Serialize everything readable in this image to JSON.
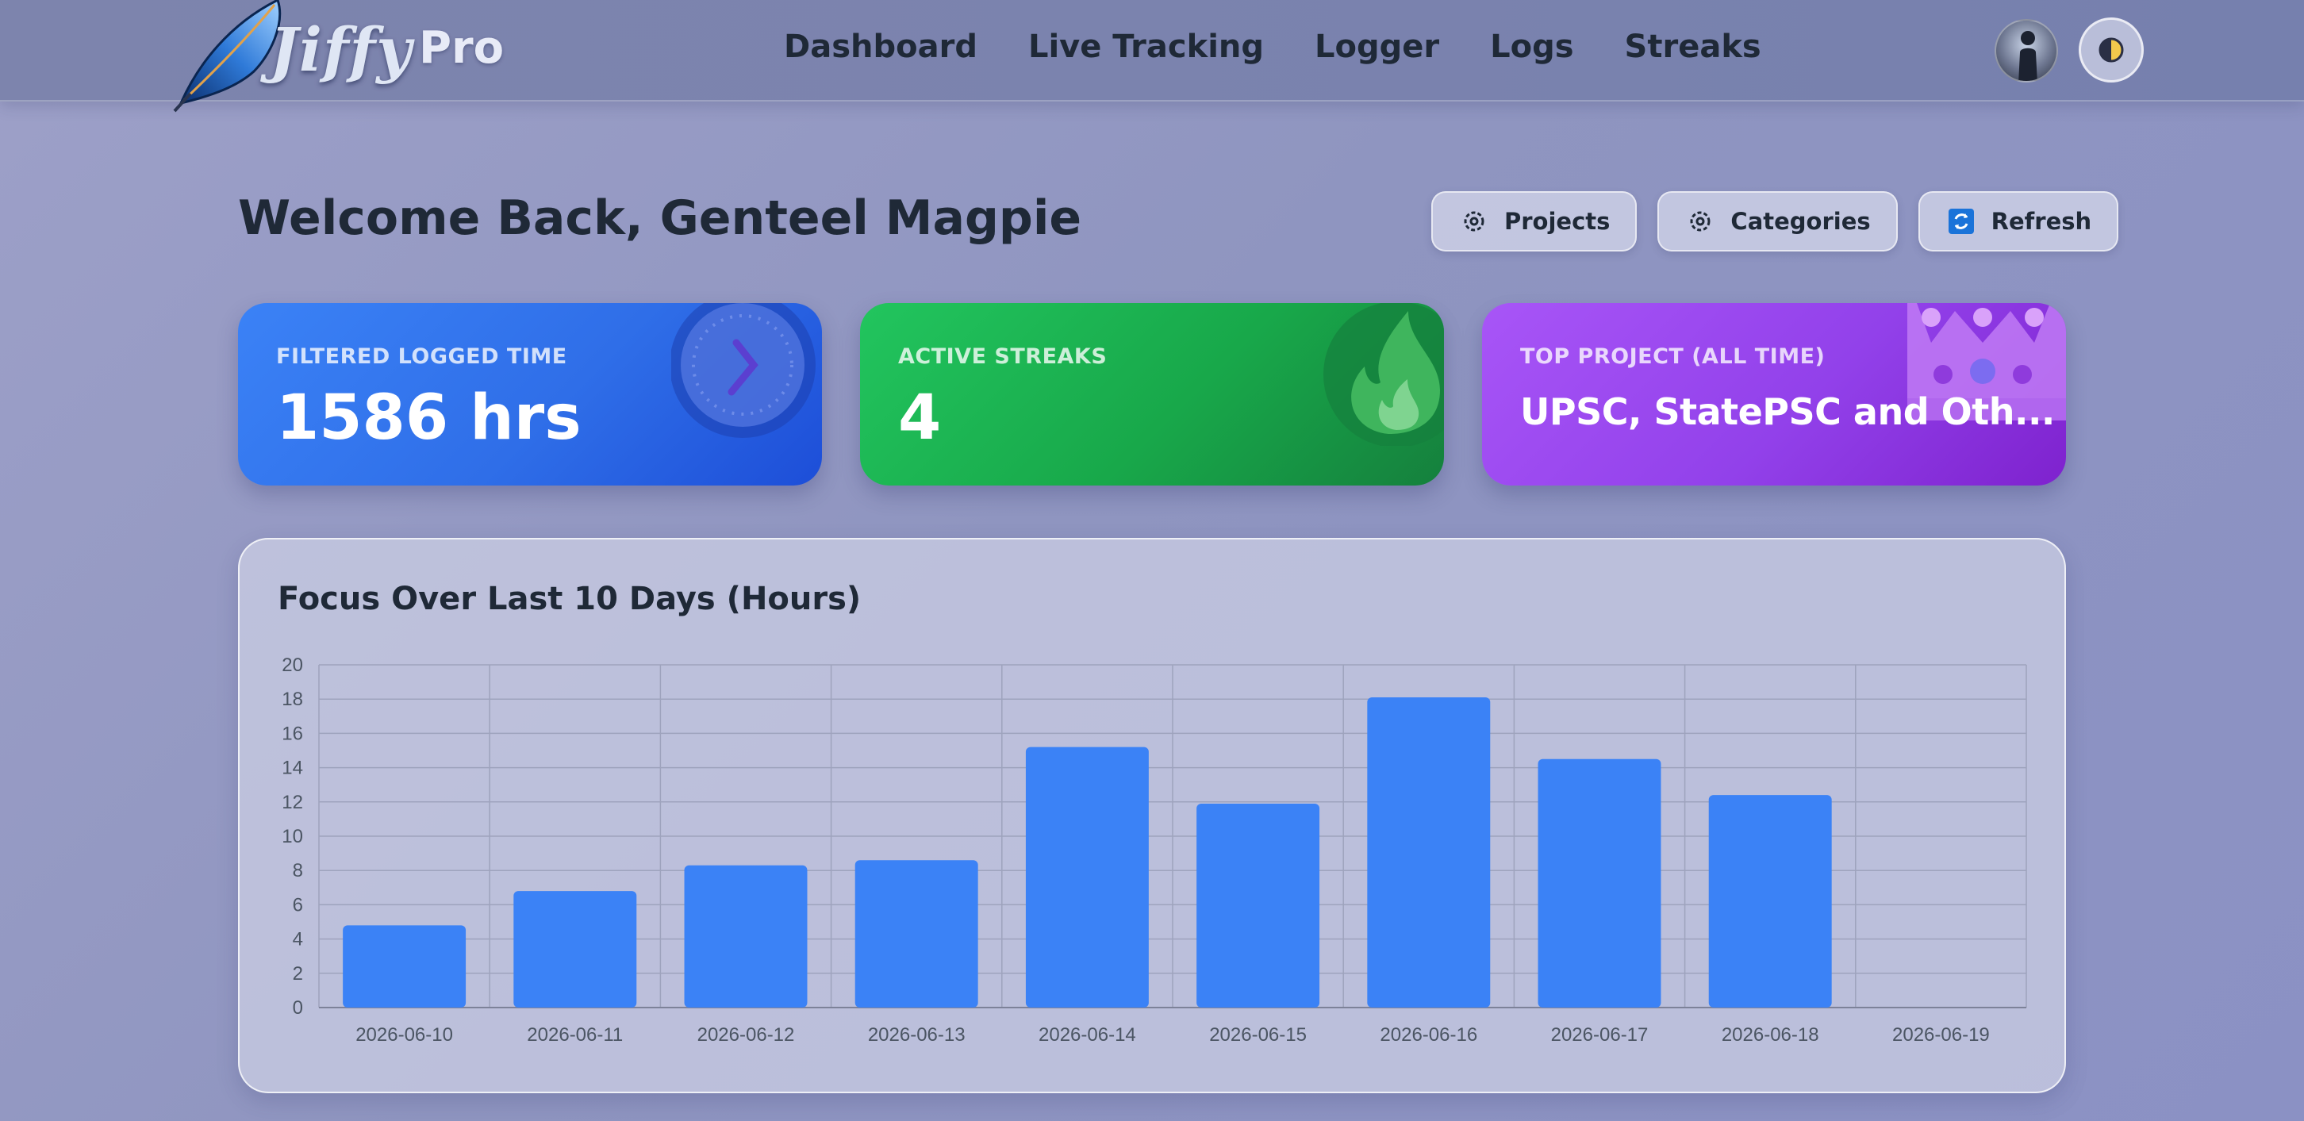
{
  "brand": {
    "name": "Jiffy",
    "tier": "Pro",
    "logo_icon": "feather-icon"
  },
  "nav": {
    "links": [
      "Dashboard",
      "Live Tracking",
      "Logger",
      "Logs",
      "Streaks"
    ]
  },
  "user": {
    "avatar_icon": "user-avatar",
    "theme_icon": "moon-sun-toggle-icon"
  },
  "header": {
    "welcome": "Welcome Back, Genteel Magpie",
    "buttons": [
      {
        "label": "Projects",
        "icon": "gear-icon"
      },
      {
        "label": "Categories",
        "icon": "gear-icon"
      },
      {
        "label": "Refresh",
        "icon": "refresh-icon"
      }
    ]
  },
  "cards": {
    "logged_time": {
      "label": "FILTERED LOGGED TIME",
      "value": "1586 hrs",
      "icon": "clock-icon",
      "color": "#3b82f6"
    },
    "streaks": {
      "label": "ACTIVE STREAKS",
      "value": "4",
      "icon": "flame-icon",
      "color": "#22c55e"
    },
    "top_project": {
      "label": "TOP PROJECT (ALL TIME)",
      "value": "UPSC, StatePSC and Oth...",
      "icon": "crown-icon",
      "color": "#a855f7"
    }
  },
  "chart_panel": {
    "title": "Focus Over Last 10 Days (Hours)"
  },
  "chart_data": {
    "type": "bar",
    "categories": [
      "2026-06-10",
      "2026-06-11",
      "2026-06-12",
      "2026-06-13",
      "2026-06-14",
      "2026-06-15",
      "2026-06-16",
      "2026-06-17",
      "2026-06-18",
      "2026-06-19"
    ],
    "values": [
      4.8,
      6.8,
      8.3,
      8.6,
      15.2,
      11.9,
      18.1,
      14.5,
      12.4,
      0
    ],
    "ylim": [
      0,
      20
    ],
    "yticks": [
      0,
      2,
      4,
      6,
      8,
      10,
      12,
      14,
      16,
      18,
      20
    ],
    "bar_color": "#3b82f6",
    "grid": true
  }
}
